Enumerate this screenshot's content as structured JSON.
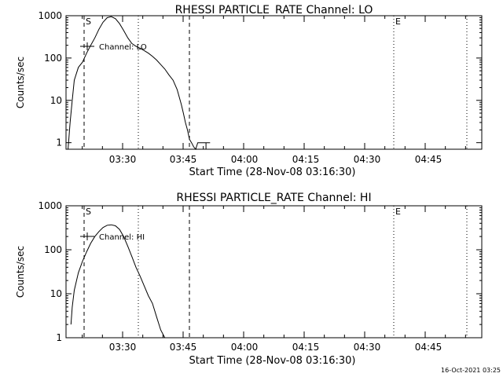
{
  "footer": {
    "timestamp": "16-Oct-2021 03:25"
  },
  "chart_data": [
    {
      "type": "line",
      "title": "RHESSI PARTICLE_RATE Channel: LO",
      "xlabel": "Start Time (28-Nov-08 03:16:30)",
      "ylabel": "Counts/sec",
      "yscale": "log",
      "ylim": [
        0.7,
        1000
      ],
      "xlim_minutes": [
        0,
        101
      ],
      "xtick_labels": [
        "03:30",
        "03:45",
        "04:00",
        "04:15",
        "04:30",
        "04:45"
      ],
      "ytick_labels": [
        "1",
        "10",
        "100",
        "1000"
      ],
      "legend": "Channel: LO",
      "markers": {
        "start": "S",
        "end": "E"
      },
      "x": [
        0.5,
        1.0,
        1.5,
        2.0,
        3.0,
        4.0,
        5.0,
        6.0,
        7.0,
        8.0,
        9.0,
        10.0,
        11.0,
        12.0,
        13.0,
        14.0,
        15.0,
        16.0,
        17.0,
        18.0,
        19.0,
        20.0,
        21.0,
        22.0,
        23.0,
        24.0,
        25.0,
        26.0,
        27.0,
        28.0,
        28.5,
        29.0,
        29.5,
        30.0,
        30.5,
        31.0,
        31.5,
        32.0,
        33.0,
        34.0,
        34.0,
        34.0,
        35.0
      ],
      "y": [
        0.7,
        3,
        10,
        30,
        60,
        80,
        130,
        200,
        300,
        480,
        700,
        900,
        950,
        850,
        650,
        450,
        300,
        220,
        190,
        170,
        150,
        130,
        110,
        90,
        70,
        55,
        40,
        30,
        18,
        8,
        5,
        3,
        2,
        1.2,
        1,
        0.8,
        0.7,
        1,
        1,
        1,
        0.7,
        1,
        1
      ],
      "y_limit": [
        0.7,
        0.7,
        0.7,
        0.7,
        0.7,
        0.7,
        0.7,
        0.7,
        0.7,
        0.7,
        0.7,
        0.7,
        0.7,
        0.7,
        0.7,
        0.7,
        0.7,
        0.7,
        0.7,
        0.7,
        0.7,
        0.7,
        0.7,
        0.7,
        0.7,
        0.7,
        0.7,
        0.7,
        0.7,
        0.7,
        0.7,
        0.7,
        0.7,
        0.7,
        0.7,
        0.7,
        0.7,
        0.7,
        0.7,
        0.7,
        0.7,
        0.7,
        0.7
      ]
    },
    {
      "type": "line",
      "title": "RHESSI PARTICLE_RATE Channel: HI",
      "xlabel": "Start Time (28-Nov-08 03:16:30)",
      "ylabel": "Counts/sec",
      "yscale": "log",
      "ylim": [
        1,
        1000
      ],
      "xlim_minutes": [
        0,
        101
      ],
      "xtick_labels": [
        "03:30",
        "03:45",
        "04:00",
        "04:15",
        "04:30",
        "04:45"
      ],
      "ytick_labels": [
        "1",
        "10",
        "100",
        "1000"
      ],
      "legend": "Channel: HI",
      "markers": {
        "start": "S",
        "end": "E"
      },
      "x": [
        1.2,
        1.5,
        2.0,
        3.0,
        4.0,
        5.0,
        6.0,
        7.0,
        8.0,
        9.0,
        10.0,
        11.0,
        12.0,
        13.0,
        14.0,
        15.0,
        16.0,
        17.0,
        18.0,
        19.0,
        20.0,
        21.0,
        22.0,
        23.0,
        24.0
      ],
      "y": [
        2,
        5,
        12,
        30,
        55,
        90,
        140,
        200,
        260,
        320,
        360,
        370,
        350,
        290,
        200,
        120,
        70,
        40,
        25,
        15,
        9,
        6,
        3,
        1.5,
        1
      ],
      "y_limit": [
        1,
        1,
        1,
        1,
        1,
        1,
        1,
        1,
        1,
        1,
        1,
        1,
        1,
        1,
        1,
        1,
        1,
        1,
        1,
        1,
        1,
        1,
        1,
        1,
        1
      ]
    }
  ]
}
